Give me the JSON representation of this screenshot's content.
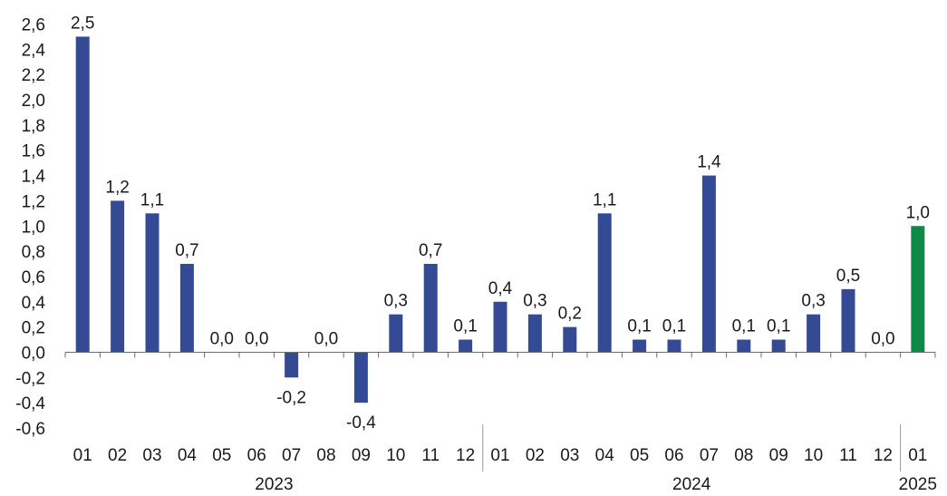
{
  "chart_data": {
    "type": "bar",
    "title": "",
    "xlabel": "",
    "ylabel": "",
    "ylim": [
      -0.6,
      2.6
    ],
    "y_ticks": [
      "2,6",
      "2,4",
      "2,2",
      "2,0",
      "1,8",
      "1,6",
      "1,4",
      "1,2",
      "1,0",
      "0,8",
      "0,6",
      "0,4",
      "0,2",
      "0,0",
      "-0,2",
      "-0,4",
      "-0,6"
    ],
    "grid": false,
    "categories": [
      "01",
      "02",
      "03",
      "04",
      "05",
      "06",
      "07",
      "08",
      "09",
      "10",
      "11",
      "12",
      "01",
      "02",
      "03",
      "04",
      "05",
      "06",
      "07",
      "08",
      "09",
      "10",
      "11",
      "12",
      "01"
    ],
    "years": [
      {
        "label": "2023",
        "months": 12
      },
      {
        "label": "2024",
        "months": 12
      },
      {
        "label": "2025",
        "months": 1
      }
    ],
    "values": [
      2.5,
      1.2,
      1.1,
      0.7,
      0.0,
      0.0,
      -0.2,
      0.0,
      -0.4,
      0.3,
      0.7,
      0.1,
      0.4,
      0.3,
      0.2,
      1.1,
      0.1,
      0.1,
      1.4,
      0.1,
      0.1,
      0.3,
      0.5,
      0.0,
      1.0
    ],
    "data_labels": [
      "2,5",
      "1,2",
      "1,1",
      "0,7",
      "0,0",
      "0,0",
      "-0,2",
      "0,0",
      "-0,4",
      "0,3",
      "0,7",
      "0,1",
      "0,4",
      "0,3",
      "0,2",
      "1,1",
      "0,1",
      "0,1",
      "1,4",
      "0,1",
      "0,1",
      "0,3",
      "0,5",
      "0,0",
      "1,0"
    ],
    "colors": {
      "bar": "#344a94",
      "highlight": "#0e8a47"
    },
    "highlight_index": 24
  }
}
